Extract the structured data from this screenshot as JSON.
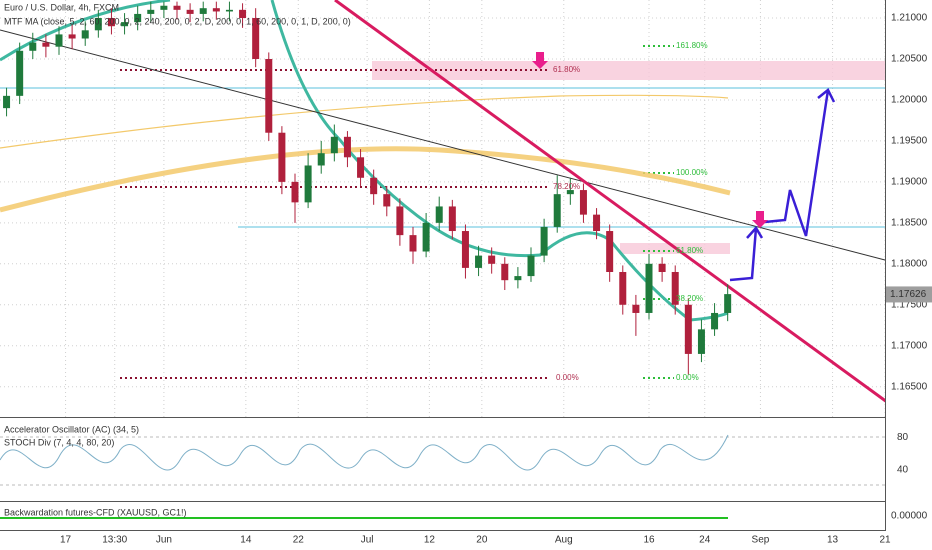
{
  "chart_data": {
    "type": "candlestick",
    "title": "Euro / U.S. Dollar, 4h, FXCM",
    "indicators": [
      "MTF MA (close, 5, 2, 60, 200, 0, 2, 240, 200, 0, 2, D, 200, 0, 1, 60, 200, 0, 1, D, 200, 0)",
      "Accelerator Oscillator (AC) (34, 5)",
      "STOCH Div (7, 4, 4, 80, 20)",
      "Backwardation futures-CFD (XAUUSD, GC1!)"
    ],
    "annotations": [
      "161.80%",
      "61.80%",
      "100.00%",
      "78.20%",
      "61.80%",
      "38.20%",
      "0.00%",
      "0.00%"
    ],
    "up_color": "#1f7a3c",
    "down_color": "#b0203c",
    "x": [
      -24,
      -22,
      -20,
      -18,
      -16,
      -14,
      -12,
      -10,
      -8,
      -6,
      -4,
      -2,
      0,
      2,
      4,
      6,
      8,
      10,
      12,
      14,
      16,
      18,
      20,
      22,
      24,
      26,
      28,
      30,
      32,
      34,
      36,
      38,
      40,
      42,
      44,
      46,
      48,
      50,
      52,
      54,
      56,
      58,
      60,
      62,
      64,
      66,
      68,
      70,
      72,
      74,
      76,
      78,
      80,
      82,
      84,
      86
    ],
    "open": [
      1.199,
      1.2005,
      1.206,
      1.207,
      1.2065,
      1.208,
      1.2075,
      1.2085,
      1.21,
      1.209,
      1.2095,
      1.2105,
      1.211,
      1.2115,
      1.211,
      1.2105,
      1.2112,
      1.2108,
      1.211,
      1.21,
      1.205,
      1.196,
      1.19,
      1.1875,
      1.192,
      1.1935,
      1.1955,
      1.193,
      1.1905,
      1.1885,
      1.187,
      1.1835,
      1.1815,
      1.185,
      1.187,
      1.184,
      1.1795,
      1.181,
      1.18,
      1.178,
      1.1785,
      1.181,
      1.1845,
      1.1885,
      1.189,
      1.186,
      1.184,
      1.179,
      1.175,
      1.174,
      1.18,
      1.179,
      1.175,
      1.169,
      1.172,
      1.174
    ],
    "high": [
      1.2015,
      1.207,
      1.2082,
      1.208,
      1.209,
      1.2092,
      1.2096,
      1.211,
      1.2112,
      1.2106,
      1.2115,
      1.212,
      1.212,
      1.212,
      1.2118,
      1.212,
      1.212,
      1.212,
      1.2118,
      1.2112,
      1.2058,
      1.1968,
      1.191,
      1.1935,
      1.195,
      1.197,
      1.1962,
      1.194,
      1.1915,
      1.1895,
      1.188,
      1.1845,
      1.1862,
      1.1882,
      1.1878,
      1.1848,
      1.1822,
      1.182,
      1.1808,
      1.1796,
      1.182,
      1.1855,
      1.1908,
      1.1905,
      1.1898,
      1.1868,
      1.1848,
      1.1798,
      1.1762,
      1.1812,
      1.1808,
      1.1798,
      1.1758,
      1.1732,
      1.1752,
      1.1775
    ],
    "low": [
      1.198,
      1.1995,
      1.205,
      1.2052,
      1.2055,
      1.2062,
      1.2066,
      1.2076,
      1.208,
      1.208,
      1.2085,
      1.2095,
      1.21,
      1.2098,
      1.2095,
      1.2096,
      1.2098,
      1.2096,
      1.2088,
      1.204,
      1.195,
      1.1885,
      1.185,
      1.1868,
      1.191,
      1.1925,
      1.1918,
      1.1895,
      1.1872,
      1.1858,
      1.1822,
      1.18,
      1.1808,
      1.184,
      1.183,
      1.1782,
      1.1785,
      1.1788,
      1.1768,
      1.177,
      1.1778,
      1.1802,
      1.1838,
      1.1872,
      1.185,
      1.183,
      1.1778,
      1.1738,
      1.1712,
      1.1732,
      1.1778,
      1.1738,
      1.1665,
      1.168,
      1.1712,
      1.173
    ],
    "close": [
      1.2005,
      1.206,
      1.207,
      1.2065,
      1.208,
      1.2075,
      1.2085,
      1.21,
      1.209,
      1.2095,
      1.2105,
      1.211,
      1.2115,
      1.211,
      1.2105,
      1.2112,
      1.2108,
      1.211,
      1.21,
      1.205,
      1.196,
      1.19,
      1.1875,
      1.192,
      1.1935,
      1.1955,
      1.193,
      1.1905,
      1.1885,
      1.187,
      1.1835,
      1.1815,
      1.185,
      1.187,
      1.184,
      1.1795,
      1.181,
      1.18,
      1.178,
      1.1785,
      1.181,
      1.1845,
      1.1885,
      1.189,
      1.186,
      1.184,
      1.179,
      1.175,
      1.174,
      1.18,
      1.179,
      1.175,
      1.169,
      1.172,
      1.174,
      1.1763
    ],
    "xlim": [
      -25,
      110
    ],
    "xticks": [
      {
        "value": -15,
        "label": "17"
      },
      {
        "value": -7.5,
        "label": "13:30"
      },
      {
        "value": 0,
        "label": "Jun"
      },
      {
        "value": 12.5,
        "label": "14"
      },
      {
        "value": 20.5,
        "label": "22"
      },
      {
        "value": 31,
        "label": "Jul"
      },
      {
        "value": 40.5,
        "label": "12"
      },
      {
        "value": 48.5,
        "label": "20"
      },
      {
        "value": 61,
        "label": "Aug"
      },
      {
        "value": 74,
        "label": "16"
      },
      {
        "value": 82.5,
        "label": "24"
      },
      {
        "value": 91,
        "label": "Sep"
      },
      {
        "value": 102,
        "label": "13"
      },
      {
        "value": 110,
        "label": "21"
      }
    ],
    "ylim": [
      1.1613,
      1.2122
    ],
    "yticks": [
      {
        "value": 1.21,
        "label": "1.21000"
      },
      {
        "value": 1.205,
        "label": "1.20500"
      },
      {
        "value": 1.2,
        "label": "1.20000"
      },
      {
        "value": 1.195,
        "label": "1.19500"
      },
      {
        "value": 1.19,
        "label": "1.19000"
      },
      {
        "value": 1.185,
        "label": "1.18500"
      },
      {
        "value": 1.18,
        "label": "1.18000"
      },
      {
        "value": 1.175,
        "label": "1.17500"
      },
      {
        "value": 1.17,
        "label": "1.17000"
      },
      {
        "value": 1.165,
        "label": "1.16500"
      }
    ],
    "last_price": {
      "value": 1.17626,
      "label": "1.17626"
    },
    "osc_ylim": [
      1.25,
      103.75
    ],
    "osc_yticks": [
      80,
      40
    ],
    "bw_ylim": [
      -1,
      1
    ],
    "bw_yticks": [
      {
        "value": 0,
        "label": "0.00000"
      }
    ],
    "grid": true
  }
}
